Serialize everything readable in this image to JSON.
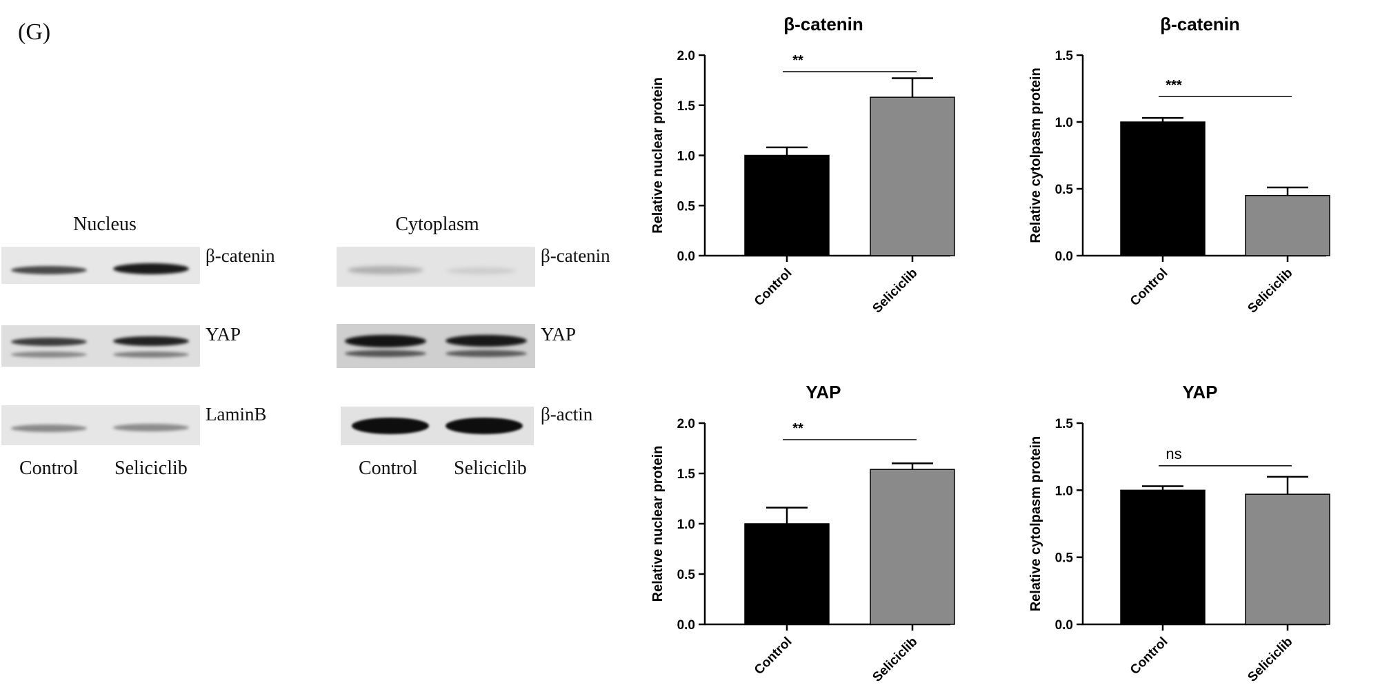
{
  "figure": {
    "panel_label": "(G)"
  },
  "blots": {
    "nucleus": {
      "title": "Nucleus",
      "rows": [
        "β-catenin",
        "YAP",
        "LaminB"
      ],
      "lanes": [
        "Control",
        "Seliciclib"
      ]
    },
    "cytoplasm": {
      "title": "Cytoplasm",
      "rows": [
        "β-catenin",
        "YAP",
        "β-actin"
      ],
      "lanes": [
        "Control",
        "Seliciclib"
      ]
    }
  },
  "colors": {
    "control": "#000000",
    "seliciclib": "#8a8a8a",
    "axis": "#000000"
  },
  "chart_data": [
    {
      "type": "bar",
      "title": "β-catenin",
      "ylabel": "Relative nuclear protein",
      "categories": [
        "Control",
        "Seliciclib"
      ],
      "values": [
        1.0,
        1.58
      ],
      "errors": [
        0.08,
        0.19
      ],
      "ylim": [
        0,
        2.0
      ],
      "yticks": [
        "0.0",
        "0.5",
        "1.0",
        "1.5",
        "2.0"
      ],
      "significance": "**"
    },
    {
      "type": "bar",
      "title": "β-catenin",
      "ylabel": "Relative cytolpasm protein",
      "categories": [
        "Control",
        "Seliciclib"
      ],
      "values": [
        1.0,
        0.45
      ],
      "errors": [
        0.03,
        0.06
      ],
      "ylim": [
        0,
        1.5
      ],
      "yticks": [
        "0.0",
        "0.5",
        "1.0",
        "1.5"
      ],
      "significance": "***"
    },
    {
      "type": "bar",
      "title": "YAP",
      "ylabel": "Relative nuclear protein",
      "categories": [
        "Control",
        "Seliciclib"
      ],
      "values": [
        1.0,
        1.54
      ],
      "errors": [
        0.16,
        0.06
      ],
      "ylim": [
        0,
        2.0
      ],
      "yticks": [
        "0.0",
        "0.5",
        "1.0",
        "1.5",
        "2.0"
      ],
      "significance": "**"
    },
    {
      "type": "bar",
      "title": "YAP",
      "ylabel": "Relative cytolpasm protein",
      "categories": [
        "Control",
        "Seliciclib"
      ],
      "values": [
        1.0,
        0.97
      ],
      "errors": [
        0.03,
        0.13
      ],
      "ylim": [
        0,
        1.5
      ],
      "yticks": [
        "0.0",
        "0.5",
        "1.0",
        "1.5"
      ],
      "significance": "ns"
    }
  ]
}
